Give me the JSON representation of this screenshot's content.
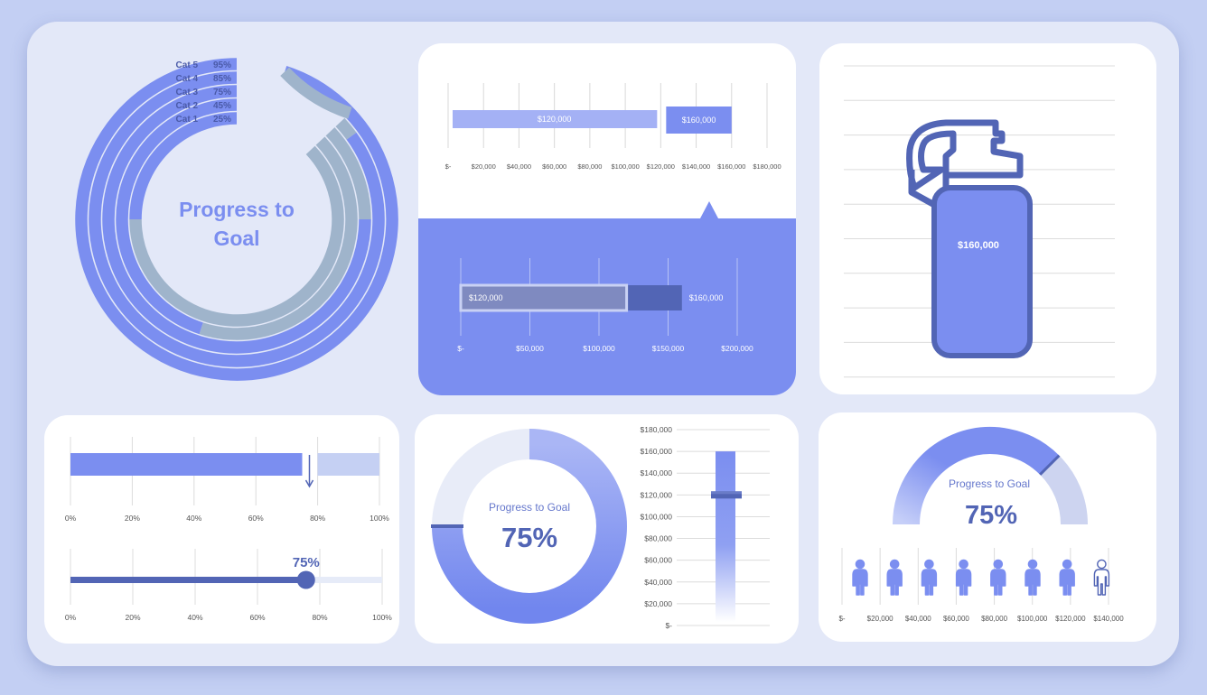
{
  "colors": {
    "accent": "#7b8ef0",
    "accent_light": "#a4b1f5",
    "dark": "#5265b5",
    "grey_blue": "#9fb4cb",
    "pale": "#c5d0f3",
    "track": "#e6ebf8",
    "text_dark": "#4a5aa8",
    "label": "#555555"
  },
  "chart_data": [
    {
      "id": "radial",
      "type": "radial-bar",
      "title": "Progress to Goal",
      "categories": [
        "Cat 5",
        "Cat 4",
        "Cat 3",
        "Cat 2",
        "Cat 1"
      ],
      "values": [
        0.95,
        0.85,
        0.75,
        0.45,
        0.25
      ],
      "value_labels": [
        "95%",
        "85%",
        "75%",
        "45%",
        "25%"
      ]
    },
    {
      "id": "hbar_top",
      "type": "bar",
      "orientation": "horizontal",
      "series": [
        {
          "value": 120000,
          "label": "$120,000"
        },
        {
          "value": 160000,
          "label": "$160,000"
        }
      ],
      "xlim": [
        0,
        180000
      ],
      "ticks": [
        {
          "v": 0,
          "label": "$-"
        },
        {
          "v": 20000,
          "label": "$20,000"
        },
        {
          "v": 40000,
          "label": "$40,000"
        },
        {
          "v": 60000,
          "label": "$60,000"
        },
        {
          "v": 80000,
          "label": "$80,000"
        },
        {
          "v": 100000,
          "label": "$100,000"
        },
        {
          "v": 120000,
          "label": "$120,000"
        },
        {
          "v": 140000,
          "label": "$140,000"
        },
        {
          "v": 160000,
          "label": "$160,000"
        },
        {
          "v": 180000,
          "label": "$180,000"
        }
      ]
    },
    {
      "id": "hbar_bottom",
      "type": "bar",
      "orientation": "horizontal",
      "actual": {
        "value": 120000,
        "label": "$120,000"
      },
      "goal": {
        "value": 160000,
        "label": "$160,000"
      },
      "xlim": [
        0,
        200000
      ],
      "ticks": [
        {
          "v": 0,
          "label": "$-"
        },
        {
          "v": 50000,
          "label": "$50,000"
        },
        {
          "v": 100000,
          "label": "$100,000"
        },
        {
          "v": 150000,
          "label": "$150,000"
        },
        {
          "v": 200000,
          "label": "$200,000"
        }
      ]
    },
    {
      "id": "bottle",
      "type": "fill-gauge",
      "value_label": "$160,000",
      "fill_fraction": 1.0
    },
    {
      "id": "pct_bar",
      "type": "bar",
      "value": 0.75,
      "goal": 0.8,
      "xlim": [
        0,
        1
      ],
      "ticks": [
        "0%",
        "20%",
        "40%",
        "60%",
        "80%",
        "100%"
      ]
    },
    {
      "id": "slider",
      "type": "slider",
      "value": 0.75,
      "value_label": "75%",
      "xlim": [
        0,
        1
      ],
      "ticks": [
        "0%",
        "20%",
        "40%",
        "60%",
        "80%",
        "100%"
      ]
    },
    {
      "id": "donut",
      "type": "pie",
      "title": "Progress to Goal",
      "value": 0.75,
      "value_label": "75%"
    },
    {
      "id": "vbar",
      "type": "bar",
      "orientation": "vertical",
      "value": 160000,
      "marker": 120000,
      "ylim": [
        0,
        180000
      ],
      "ticks": [
        {
          "v": 180000,
          "label": "$180,000"
        },
        {
          "v": 160000,
          "label": "$160,000"
        },
        {
          "v": 140000,
          "label": "$140,000"
        },
        {
          "v": 120000,
          "label": "$120,000"
        },
        {
          "v": 100000,
          "label": "$100,000"
        },
        {
          "v": 80000,
          "label": "$80,000"
        },
        {
          "v": 60000,
          "label": "$60,000"
        },
        {
          "v": 40000,
          "label": "$40,000"
        },
        {
          "v": 20000,
          "label": "$20,000"
        },
        {
          "v": 0,
          "label": "$-"
        }
      ]
    },
    {
      "id": "gauge",
      "type": "gauge",
      "title": "Progress to Goal",
      "value": 0.75,
      "value_label": "75%"
    },
    {
      "id": "pictograph",
      "type": "pictograph",
      "icons_total": 8,
      "icons_filled": 7,
      "icon": "person-icon",
      "xlim": [
        0,
        140000
      ],
      "ticks": [
        {
          "v": 0,
          "label": "$-"
        },
        {
          "v": 20000,
          "label": "$20,000"
        },
        {
          "v": 40000,
          "label": "$40,000"
        },
        {
          "v": 60000,
          "label": "$60,000"
        },
        {
          "v": 80000,
          "label": "$80,000"
        },
        {
          "v": 100000,
          "label": "$100,000"
        },
        {
          "v": 120000,
          "label": "$120,000"
        },
        {
          "v": 140000,
          "label": "$140,000"
        }
      ]
    }
  ]
}
